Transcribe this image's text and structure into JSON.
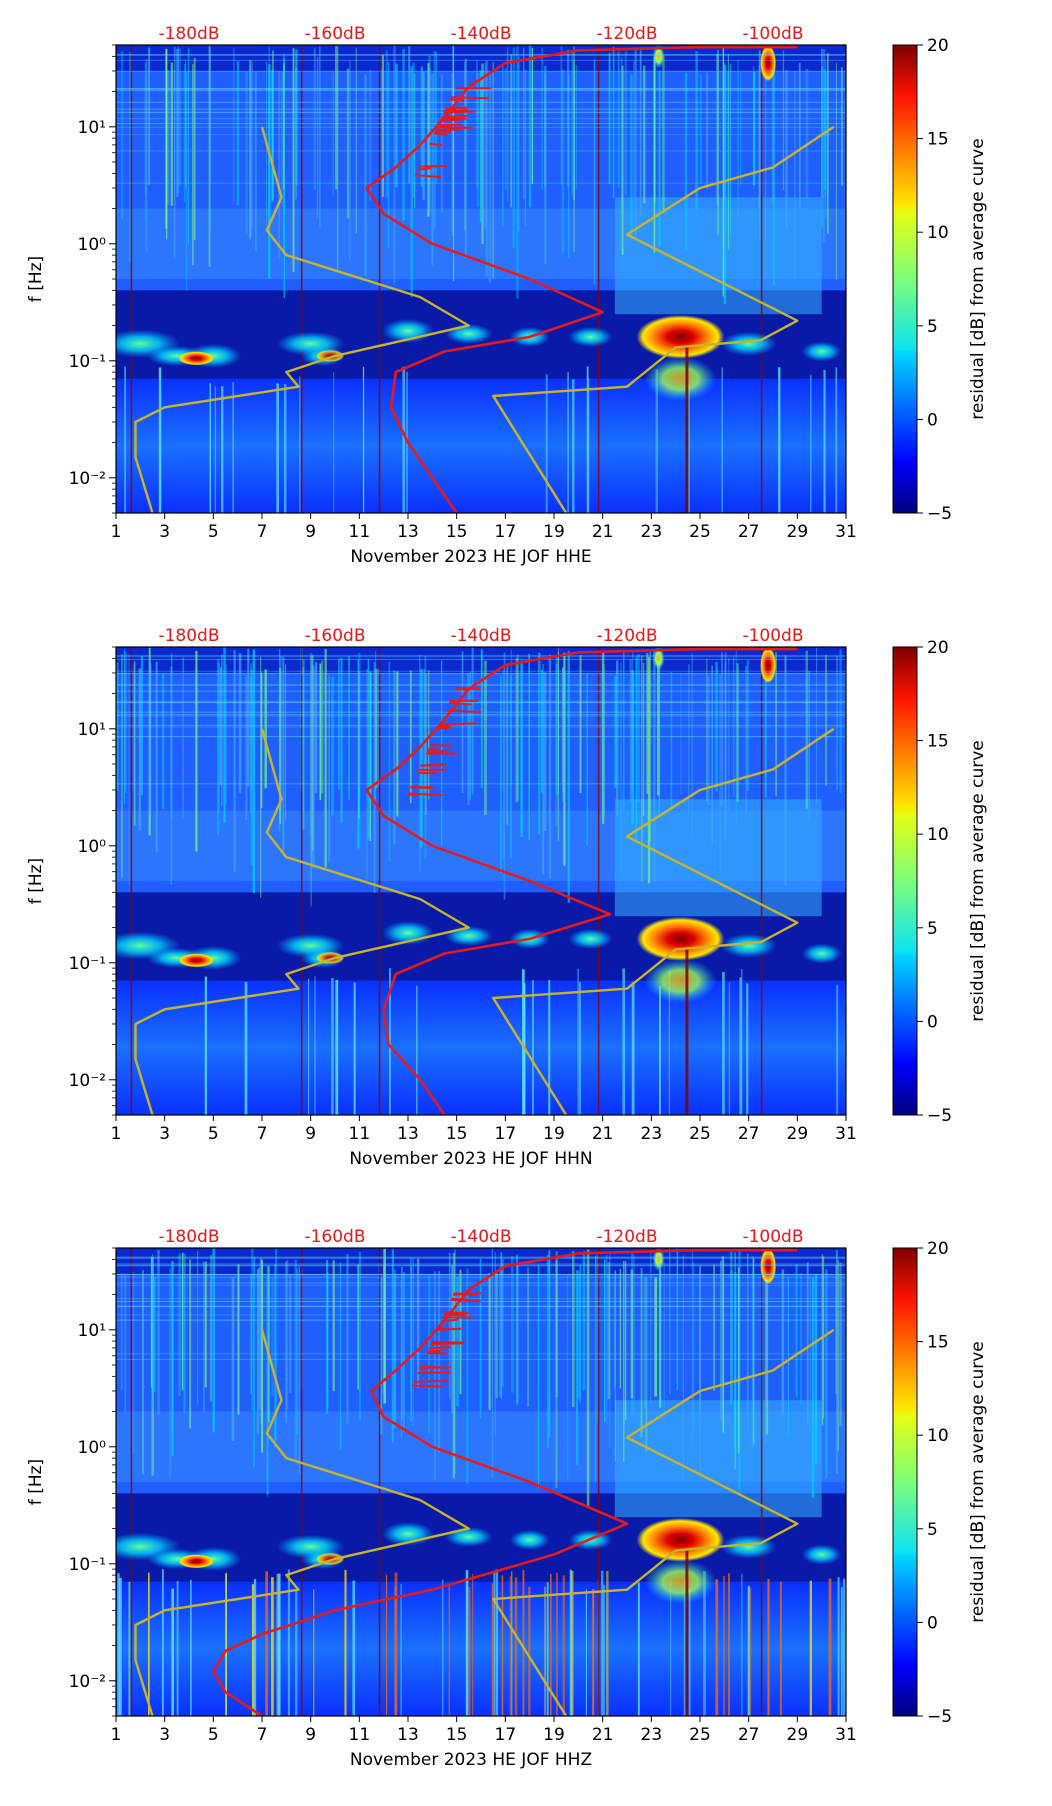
{
  "chart_data": [
    {
      "type": "heatmap",
      "title": "",
      "xlabel": "November 2023 HE JOF  HHE",
      "ylabel": "f [Hz]",
      "x_ticks": [
        1,
        3,
        5,
        7,
        9,
        11,
        13,
        15,
        17,
        19,
        21,
        23,
        25,
        27,
        29,
        31
      ],
      "xlim": [
        1,
        31
      ],
      "y_scale": "log",
      "y_ticks": [
        {
          "value": 10,
          "label": "10¹"
        },
        {
          "value": 1,
          "label": "10⁰"
        },
        {
          "value": 0.1,
          "label": "10⁻¹"
        },
        {
          "value": 0.01,
          "label": "10⁻²"
        }
      ],
      "ylim": [
        0.005,
        50
      ],
      "top_db_labels": [
        "-180dB",
        "-160dB",
        "-140dB",
        "-120dB",
        "-100dB"
      ],
      "top_db_values": [
        -180,
        -160,
        -140,
        -120,
        -100
      ],
      "colorbar": {
        "label": "residual [dB] from average curve",
        "range": [
          -5,
          20
        ],
        "ticks": [
          -5,
          0,
          5,
          10,
          15,
          20
        ]
      },
      "series": [
        {
          "name": "average noise curve",
          "color": "#e41a1c",
          "points": [
            [
              15,
              0.005
            ],
            [
              14,
              0.01
            ],
            [
              13,
              0.02
            ],
            [
              12.3,
              0.04
            ],
            [
              12.5,
              0.08
            ],
            [
              14.5,
              0.12
            ],
            [
              18,
              0.16
            ],
            [
              21,
              0.26
            ],
            [
              18,
              0.5
            ],
            [
              14,
              1
            ],
            [
              12,
              1.8
            ],
            [
              11.3,
              3
            ],
            [
              12.5,
              4.5
            ],
            [
              13.5,
              7
            ],
            [
              14.5,
              12
            ],
            [
              15.5,
              22
            ],
            [
              17,
              35
            ],
            [
              20,
              45
            ],
            [
              25,
              48
            ],
            [
              29,
              48
            ]
          ]
        },
        {
          "name": "low noise model",
          "color": "#c8b42a",
          "points": [
            [
              2.5,
              0.005
            ],
            [
              2.2,
              0.008
            ],
            [
              1.8,
              0.015
            ],
            [
              1.8,
              0.03
            ],
            [
              3,
              0.04
            ],
            [
              8.5,
              0.06
            ],
            [
              8,
              0.08
            ],
            [
              10,
              0.11
            ],
            [
              15.5,
              0.2
            ],
            [
              13.5,
              0.35
            ],
            [
              8,
              0.8
            ],
            [
              7.2,
              1.3
            ],
            [
              7.8,
              2.5
            ],
            [
              7,
              10
            ]
          ]
        },
        {
          "name": "high noise model",
          "color": "#c8b42a",
          "points": [
            [
              19.5,
              0.005
            ],
            [
              16.5,
              0.05
            ],
            [
              22,
              0.06
            ],
            [
              24,
              0.13
            ],
            [
              27.5,
              0.15
            ],
            [
              29,
              0.22
            ],
            [
              22,
              1.2
            ],
            [
              25,
              3
            ],
            [
              28,
              4.5
            ],
            [
              30.5,
              10
            ]
          ]
        }
      ]
    },
    {
      "type": "heatmap",
      "title": "",
      "xlabel": "November 2023 HE JOF  HHN",
      "ylabel": "f [Hz]",
      "x_ticks": [
        1,
        3,
        5,
        7,
        9,
        11,
        13,
        15,
        17,
        19,
        21,
        23,
        25,
        27,
        29,
        31
      ],
      "xlim": [
        1,
        31
      ],
      "y_scale": "log",
      "y_ticks": [
        {
          "value": 10,
          "label": "10¹"
        },
        {
          "value": 1,
          "label": "10⁰"
        },
        {
          "value": 0.1,
          "label": "10⁻¹"
        },
        {
          "value": 0.01,
          "label": "10⁻²"
        }
      ],
      "ylim": [
        0.005,
        50
      ],
      "top_db_labels": [
        "-180dB",
        "-160dB",
        "-140dB",
        "-120dB",
        "-100dB"
      ],
      "top_db_values": [
        -180,
        -160,
        -140,
        -120,
        -100
      ],
      "colorbar": {
        "label": "residual [dB] from average curve",
        "range": [
          -5,
          20
        ],
        "ticks": [
          -5,
          0,
          5,
          10,
          15,
          20
        ]
      },
      "series": [
        {
          "name": "average noise curve",
          "color": "#e41a1c",
          "points": [
            [
              14.5,
              0.005
            ],
            [
              13.5,
              0.01
            ],
            [
              12.2,
              0.02
            ],
            [
              12,
              0.04
            ],
            [
              12.5,
              0.08
            ],
            [
              14.5,
              0.12
            ],
            [
              18,
              0.16
            ],
            [
              21.3,
              0.26
            ],
            [
              18,
              0.5
            ],
            [
              14,
              1
            ],
            [
              12,
              1.8
            ],
            [
              11.3,
              3
            ],
            [
              12.5,
              4.5
            ],
            [
              13.5,
              7
            ],
            [
              14.5,
              12
            ],
            [
              15.5,
              22
            ],
            [
              17,
              35
            ],
            [
              20,
              45
            ],
            [
              25,
              48
            ],
            [
              29,
              48
            ]
          ]
        },
        {
          "name": "low noise model",
          "color": "#c8b42a",
          "points": [
            [
              2.5,
              0.005
            ],
            [
              2.2,
              0.008
            ],
            [
              1.8,
              0.015
            ],
            [
              1.8,
              0.03
            ],
            [
              3,
              0.04
            ],
            [
              8.5,
              0.06
            ],
            [
              8,
              0.08
            ],
            [
              10,
              0.11
            ],
            [
              15.5,
              0.2
            ],
            [
              13.5,
              0.35
            ],
            [
              8,
              0.8
            ],
            [
              7.2,
              1.3
            ],
            [
              7.8,
              2.5
            ],
            [
              7,
              10
            ]
          ]
        },
        {
          "name": "high noise model",
          "color": "#c8b42a",
          "points": [
            [
              19.5,
              0.005
            ],
            [
              16.5,
              0.05
            ],
            [
              22,
              0.06
            ],
            [
              24,
              0.13
            ],
            [
              27.5,
              0.15
            ],
            [
              29,
              0.22
            ],
            [
              22,
              1.2
            ],
            [
              25,
              3
            ],
            [
              28,
              4.5
            ],
            [
              30.5,
              10
            ]
          ]
        }
      ]
    },
    {
      "type": "heatmap",
      "title": "",
      "xlabel": "November 2023 HE JOF  HHZ",
      "ylabel": "f [Hz]",
      "x_ticks": [
        1,
        3,
        5,
        7,
        9,
        11,
        13,
        15,
        17,
        19,
        21,
        23,
        25,
        27,
        29,
        31
      ],
      "xlim": [
        1,
        31
      ],
      "y_scale": "log",
      "y_ticks": [
        {
          "value": 10,
          "label": "10¹"
        },
        {
          "value": 1,
          "label": "10⁰"
        },
        {
          "value": 0.1,
          "label": "10⁻¹"
        },
        {
          "value": 0.01,
          "label": "10⁻²"
        }
      ],
      "ylim": [
        0.005,
        50
      ],
      "top_db_labels": [
        "-180dB",
        "-160dB",
        "-140dB",
        "-120dB",
        "-100dB"
      ],
      "top_db_values": [
        -180,
        -160,
        -140,
        -120,
        -100
      ],
      "colorbar": {
        "label": "residual [dB] from average curve",
        "range": [
          -5,
          20
        ],
        "ticks": [
          -5,
          0,
          5,
          10,
          15,
          20
        ]
      },
      "series": [
        {
          "name": "average noise curve",
          "color": "#e41a1c",
          "points": [
            [
              7,
              0.005
            ],
            [
              5.5,
              0.008
            ],
            [
              5,
              0.012
            ],
            [
              5.5,
              0.018
            ],
            [
              7,
              0.025
            ],
            [
              10,
              0.04
            ],
            [
              14,
              0.06
            ],
            [
              19,
              0.12
            ],
            [
              22,
              0.22
            ],
            [
              18,
              0.5
            ],
            [
              14,
              1
            ],
            [
              12,
              1.8
            ],
            [
              11.5,
              3
            ],
            [
              12.5,
              4.5
            ],
            [
              13.5,
              7
            ],
            [
              14.5,
              12
            ],
            [
              15.5,
              22
            ],
            [
              17,
              35
            ],
            [
              20,
              45
            ],
            [
              25,
              48
            ],
            [
              29,
              48
            ]
          ]
        },
        {
          "name": "low noise model",
          "color": "#c8b42a",
          "points": [
            [
              2.5,
              0.005
            ],
            [
              2.2,
              0.008
            ],
            [
              1.8,
              0.015
            ],
            [
              1.8,
              0.03
            ],
            [
              3,
              0.04
            ],
            [
              8.5,
              0.06
            ],
            [
              8,
              0.08
            ],
            [
              10,
              0.11
            ],
            [
              15.5,
              0.2
            ],
            [
              13.5,
              0.35
            ],
            [
              8,
              0.8
            ],
            [
              7.2,
              1.3
            ],
            [
              7.8,
              2.5
            ],
            [
              7,
              10
            ]
          ]
        },
        {
          "name": "high noise model",
          "color": "#c8b42a",
          "points": [
            [
              19.5,
              0.005
            ],
            [
              16.5,
              0.05
            ],
            [
              22,
              0.06
            ],
            [
              24,
              0.13
            ],
            [
              27.5,
              0.15
            ],
            [
              29,
              0.22
            ],
            [
              22,
              1.2
            ],
            [
              25,
              3
            ],
            [
              28,
              4.5
            ],
            [
              30.5,
              10
            ]
          ]
        }
      ]
    }
  ]
}
